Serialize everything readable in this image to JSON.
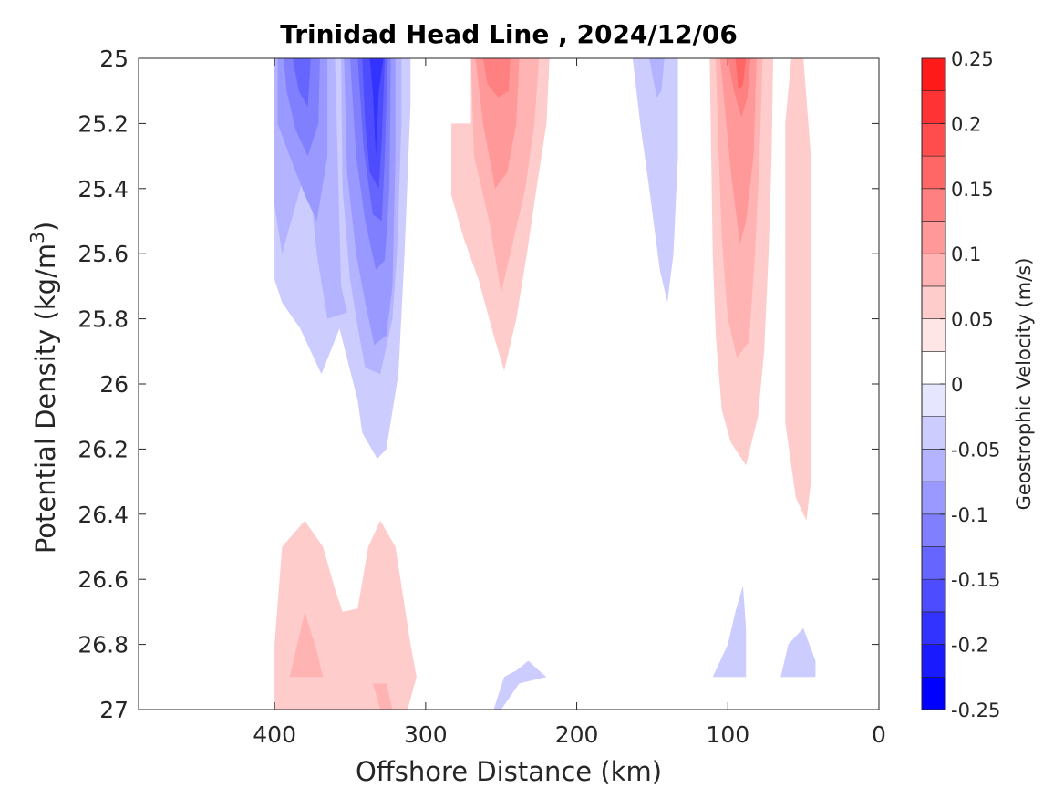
{
  "chart_data": {
    "type": "contour",
    "title": "Trinidad Head Line , 2024/12/06",
    "xlabel": "Offshore Distance (km)",
    "ylabel": "Potential Density (kg/m³)",
    "ylabel_parts": {
      "main": "Potential Density (kg/m",
      "sup": "3",
      "end": ")"
    },
    "xlim": [
      490,
      0
    ],
    "ylim": [
      25,
      27
    ],
    "x_reversed": true,
    "y_reversed": true,
    "x_ticks": [
      400,
      300,
      200,
      100,
      0
    ],
    "x_tick_labels": [
      "400",
      "300",
      "200",
      "100",
      "0"
    ],
    "y_ticks": [
      25,
      25.2,
      25.4,
      25.6,
      25.8,
      26,
      26.2,
      26.4,
      26.6,
      26.8,
      27
    ],
    "y_tick_labels": [
      "25",
      "25.2",
      "25.4",
      "25.6",
      "25.8",
      "26",
      "26.2",
      "26.4",
      "26.6",
      "26.8",
      "27"
    ],
    "colorbar": {
      "label": "Geostrophic Velocity (m/s)",
      "range": [
        -0.25,
        0.25
      ],
      "ticks": [
        0.25,
        0.2,
        0.15,
        0.1,
        0.05,
        0,
        -0.05,
        -0.1,
        -0.15,
        -0.2,
        -0.25
      ],
      "tick_labels": [
        "0.25",
        "0.2",
        "0.15",
        "0.1",
        "0.05",
        "0",
        "-0.05",
        "-0.1",
        "-0.15",
        "-0.2",
        "-0.25"
      ],
      "level_edges": [
        -0.25,
        -0.225,
        -0.2,
        -0.175,
        -0.15,
        -0.125,
        -0.1,
        -0.075,
        -0.05,
        -0.025,
        0,
        0.025,
        0.05,
        0.075,
        0.1,
        0.125,
        0.15,
        0.175,
        0.2,
        0.225,
        0.25
      ],
      "level_colors": [
        "#0000ff",
        "#1a1aff",
        "#3333ff",
        "#4d4dff",
        "#6666ff",
        "#8080ff",
        "#9999ff",
        "#b3b3ff",
        "#ccccff",
        "#e6e6ff",
        "#ffffff",
        "#ffe6e6",
        "#ffcccc",
        "#ffb3b3",
        "#ff9999",
        "#ff8080",
        "#ff6666",
        "#ff4d4d",
        "#ff3333",
        "#ff1a1a"
      ]
    },
    "regions": [
      {
        "name": "offshore-negative-core-outer",
        "value": -0.05,
        "points": [
          [
            400,
            25
          ],
          [
            310,
            25
          ],
          [
            310,
            25.14
          ],
          [
            314,
            25.6
          ],
          [
            318,
            25.97
          ],
          [
            326,
            26.2
          ],
          [
            332,
            26.23
          ],
          [
            342,
            26.15
          ],
          [
            345,
            26.05
          ],
          [
            357,
            25.83
          ],
          [
            369,
            25.97
          ],
          [
            383,
            25.83
          ],
          [
            395,
            25.75
          ],
          [
            400,
            25.68
          ]
        ]
      },
      {
        "name": "offshore-negative-west-lobe-1",
        "value": -0.075,
        "points": [
          [
            400,
            25
          ],
          [
            360,
            25
          ],
          [
            356,
            25.7
          ],
          [
            352,
            25.78
          ],
          [
            365,
            25.8
          ],
          [
            372,
            25.6
          ],
          [
            376,
            25.42
          ],
          [
            380,
            25.35
          ],
          [
            395,
            25.6
          ],
          [
            400,
            25.45
          ]
        ]
      },
      {
        "name": "offshore-negative-west-lobe-2",
        "value": -0.1,
        "points": [
          [
            398,
            25
          ],
          [
            365,
            25
          ],
          [
            365,
            25.3
          ],
          [
            372,
            25.5
          ],
          [
            380,
            25.42
          ],
          [
            390,
            25.3
          ],
          [
            398,
            25.2
          ]
        ]
      },
      {
        "name": "offshore-negative-west-lobe-3",
        "value": -0.125,
        "points": [
          [
            394,
            25
          ],
          [
            370,
            25
          ],
          [
            371,
            25.2
          ],
          [
            378,
            25.3
          ],
          [
            386,
            25.22
          ],
          [
            392,
            25.1
          ]
        ]
      },
      {
        "name": "offshore-negative-west-lobe-4",
        "value": -0.15,
        "points": [
          [
            388,
            25
          ],
          [
            376,
            25
          ],
          [
            378,
            25.15
          ],
          [
            384,
            25.1
          ]
        ]
      },
      {
        "name": "offshore-negative-jet-1",
        "value": -0.075,
        "points": [
          [
            356,
            25
          ],
          [
            316,
            25
          ],
          [
            316,
            25.2
          ],
          [
            319,
            25.6
          ],
          [
            322,
            25.8
          ],
          [
            330,
            25.97
          ],
          [
            340,
            25.95
          ],
          [
            344,
            25.85
          ],
          [
            350,
            25.68
          ],
          [
            355,
            25.4
          ]
        ]
      },
      {
        "name": "offshore-negative-jet-2",
        "value": -0.1,
        "points": [
          [
            354,
            25
          ],
          [
            320,
            25
          ],
          [
            320,
            25.3
          ],
          [
            322,
            25.7
          ],
          [
            326,
            25.85
          ],
          [
            334,
            25.88
          ],
          [
            340,
            25.75
          ],
          [
            346,
            25.6
          ],
          [
            352,
            25.35
          ]
        ]
      },
      {
        "name": "offshore-negative-jet-3",
        "value": -0.125,
        "points": [
          [
            350,
            25
          ],
          [
            323,
            25
          ],
          [
            324,
            25.4
          ],
          [
            327,
            25.62
          ],
          [
            333,
            25.65
          ],
          [
            340,
            25.5
          ],
          [
            346,
            25.3
          ]
        ]
      },
      {
        "name": "offshore-negative-jet-4",
        "value": -0.15,
        "points": [
          [
            345,
            25
          ],
          [
            325,
            25
          ],
          [
            327,
            25.3
          ],
          [
            329,
            25.5
          ],
          [
            335,
            25.48
          ],
          [
            341,
            25.28
          ]
        ]
      },
      {
        "name": "offshore-negative-jet-5",
        "value": -0.175,
        "points": [
          [
            342,
            25
          ],
          [
            327,
            25
          ],
          [
            329,
            25.25
          ],
          [
            331,
            25.4
          ],
          [
            337,
            25.35
          ],
          [
            340,
            25.2
          ]
        ]
      },
      {
        "name": "offshore-negative-jet-6",
        "value": -0.2,
        "points": [
          [
            337,
            25
          ],
          [
            328,
            25
          ],
          [
            331,
            25.1
          ],
          [
            333,
            25.3
          ],
          [
            335,
            25.1
          ]
        ]
      },
      {
        "name": "mid-positive-outer",
        "value": 0.05,
        "points": [
          [
            283,
            25.2
          ],
          [
            270,
            25.2
          ],
          [
            270,
            25
          ],
          [
            218,
            25
          ],
          [
            220,
            25.2
          ],
          [
            226,
            25.38
          ],
          [
            233,
            25.6
          ],
          [
            240,
            25.8
          ],
          [
            248,
            25.96
          ],
          [
            255,
            25.85
          ],
          [
            265,
            25.68
          ],
          [
            275,
            25.55
          ],
          [
            283,
            25.42
          ]
        ]
      },
      {
        "name": "mid-positive-inner-1",
        "value": 0.075,
        "points": [
          [
            270,
            25
          ],
          [
            225,
            25
          ],
          [
            228,
            25.2
          ],
          [
            234,
            25.4
          ],
          [
            244,
            25.6
          ],
          [
            250,
            25.72
          ],
          [
            258,
            25.5
          ],
          [
            268,
            25.3
          ]
        ]
      },
      {
        "name": "mid-positive-inner-2",
        "value": 0.1,
        "points": [
          [
            267,
            25
          ],
          [
            238,
            25
          ],
          [
            240,
            25.2
          ],
          [
            246,
            25.35
          ],
          [
            254,
            25.4
          ],
          [
            262,
            25.2
          ]
        ]
      },
      {
        "name": "mid-positive-inner-3",
        "value": 0.125,
        "points": [
          [
            262,
            25
          ],
          [
            244,
            25
          ],
          [
            245,
            25.1
          ],
          [
            252,
            25.12
          ],
          [
            259,
            25.08
          ]
        ]
      },
      {
        "name": "mid-negative-outer",
        "value": -0.05,
        "points": [
          [
            163,
            25
          ],
          [
            133,
            25
          ],
          [
            133,
            25.3
          ],
          [
            136,
            25.6
          ],
          [
            140,
            25.75
          ],
          [
            145,
            25.65
          ],
          [
            152,
            25.4
          ],
          [
            158,
            25.2
          ]
        ]
      },
      {
        "name": "mid-negative-inner",
        "value": -0.075,
        "points": [
          [
            152,
            25
          ],
          [
            142,
            25
          ],
          [
            144,
            25.1
          ],
          [
            147,
            25.12
          ]
        ]
      },
      {
        "name": "inshore-positive-outer",
        "value": 0.05,
        "points": [
          [
            112,
            25
          ],
          [
            70,
            25
          ],
          [
            71,
            25.3
          ],
          [
            73,
            25.6
          ],
          [
            76,
            25.9
          ],
          [
            80,
            26.1
          ],
          [
            88,
            26.25
          ],
          [
            98,
            26.18
          ],
          [
            104,
            26.08
          ],
          [
            108,
            25.85
          ],
          [
            110,
            25.6
          ]
        ]
      },
      {
        "name": "inshore-positive-inner-1",
        "value": 0.075,
        "points": [
          [
            108,
            25
          ],
          [
            77,
            25
          ],
          [
            79,
            25.3
          ],
          [
            82,
            25.6
          ],
          [
            86,
            25.87
          ],
          [
            94,
            25.92
          ],
          [
            100,
            25.8
          ],
          [
            104,
            25.55
          ],
          [
            106,
            25.3
          ]
        ]
      },
      {
        "name": "inshore-positive-inner-2",
        "value": 0.1,
        "points": [
          [
            105,
            25
          ],
          [
            81,
            25
          ],
          [
            83,
            25.3
          ],
          [
            88,
            25.5
          ],
          [
            92,
            25.57
          ],
          [
            98,
            25.35
          ],
          [
            102,
            25.15
          ]
        ]
      },
      {
        "name": "inshore-positive-inner-3",
        "value": 0.125,
        "points": [
          [
            100,
            25
          ],
          [
            85,
            25
          ],
          [
            87,
            25.12
          ],
          [
            91,
            25.18
          ],
          [
            96,
            25.1
          ]
        ]
      },
      {
        "name": "inshore-positive-inner-4",
        "value": 0.15,
        "points": [
          [
            95,
            25
          ],
          [
            88,
            25
          ],
          [
            90,
            25.08
          ],
          [
            93,
            25.1
          ]
        ]
      },
      {
        "name": "coastal-positive",
        "value": 0.05,
        "points": [
          [
            62,
            25.7
          ],
          [
            62,
            25.2
          ],
          [
            58,
            25
          ],
          [
            50,
            25
          ],
          [
            45,
            25.3
          ],
          [
            45,
            26.3
          ],
          [
            48,
            26.42
          ],
          [
            55,
            26.35
          ],
          [
            62,
            26.12
          ]
        ]
      },
      {
        "name": "deep-positive-west",
        "value": 0.05,
        "points": [
          [
            400,
            26.8
          ],
          [
            395,
            26.5
          ],
          [
            380,
            26.42
          ],
          [
            368,
            26.5
          ],
          [
            360,
            26.63
          ],
          [
            355,
            26.7
          ],
          [
            345,
            26.69
          ],
          [
            338,
            26.5
          ],
          [
            330,
            26.42
          ],
          [
            320,
            26.5
          ],
          [
            315,
            26.65
          ],
          [
            310,
            26.8
          ],
          [
            306,
            26.9
          ],
          [
            312,
            27
          ],
          [
            400,
            27
          ]
        ]
      },
      {
        "name": "deep-positive-west-core",
        "value": 0.075,
        "points": [
          [
            390,
            26.9
          ],
          [
            380,
            26.7
          ],
          [
            372,
            26.82
          ],
          [
            368,
            26.9
          ]
        ]
      },
      {
        "name": "deep-positive-core-2",
        "value": 0.075,
        "points": [
          [
            322,
            27
          ],
          [
            330,
            27
          ],
          [
            335,
            26.92
          ],
          [
            326,
            26.92
          ]
        ]
      },
      {
        "name": "deep-negative-mid",
        "value": -0.05,
        "points": [
          [
            255,
            27
          ],
          [
            248,
            26.9
          ],
          [
            240,
            26.88
          ],
          [
            232,
            26.85
          ],
          [
            225,
            26.88
          ],
          [
            220,
            26.9
          ],
          [
            238,
            26.92
          ],
          [
            250,
            27
          ]
        ]
      },
      {
        "name": "deep-negative-inshore-1",
        "value": -0.05,
        "points": [
          [
            110,
            26.9
          ],
          [
            100,
            26.8
          ],
          [
            95,
            26.7
          ],
          [
            90,
            26.62
          ],
          [
            88,
            26.75
          ],
          [
            88,
            26.9
          ]
        ]
      },
      {
        "name": "deep-negative-inshore-2",
        "value": -0.05,
        "points": [
          [
            65,
            26.9
          ],
          [
            60,
            26.8
          ],
          [
            50,
            26.75
          ],
          [
            42,
            26.85
          ],
          [
            42,
            26.9
          ]
        ]
      }
    ]
  }
}
